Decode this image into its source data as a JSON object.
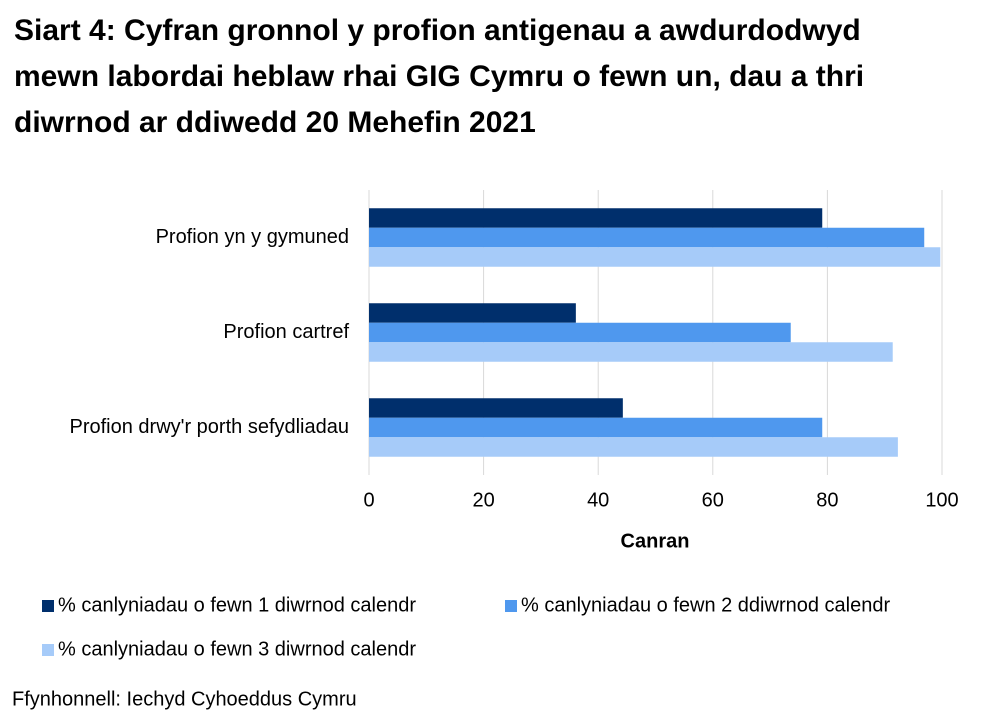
{
  "chart_data": {
    "type": "hbar",
    "title": "Siart 4: Cyfran gronnol y profion antigenau a awdurdodwyd mewn labordai heblaw rhai GIG Cymru o fewn un, dau a thri diwrnod ar ddiwedd 20 Mehefin 2021",
    "x_label": "Canran",
    "source": "Ffynhonnell: Iechyd Cyhoeddus Cymru",
    "categories": [
      "Profion yn y gymuned",
      "Profion cartref",
      "Profion drwy'r porth sefydliadau"
    ],
    "series": [
      {
        "name": "% canlyniadau o fewn 1 diwrnod calendr",
        "color": "#002f6c",
        "values": [
          79.1,
          36.1,
          44.3
        ]
      },
      {
        "name": "% canlyniadau o fewn 2 ddiwrnod calendr",
        "color": "#4f98ee",
        "values": [
          96.9,
          73.6,
          79.1
        ]
      },
      {
        "name": "% canlyniadau o fewn 3 diwrnod calendr",
        "color": "#a6cbf9",
        "values": [
          99.7,
          91.4,
          92.3
        ]
      }
    ],
    "xlim": [
      0,
      100
    ],
    "xticks": [
      0,
      20,
      40,
      60,
      80,
      100
    ],
    "grid": true
  }
}
